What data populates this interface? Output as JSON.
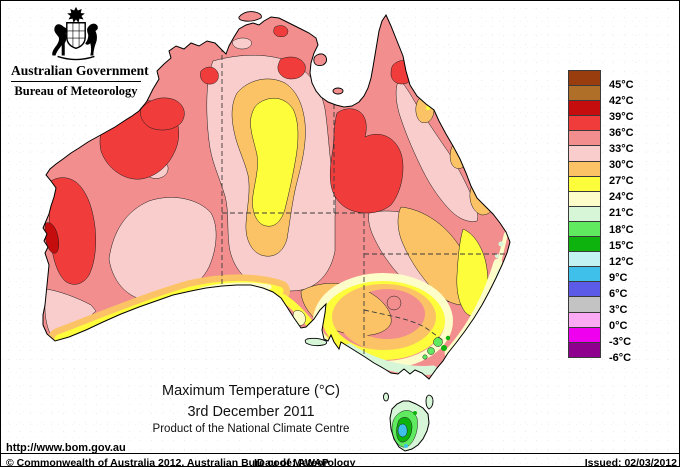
{
  "header": {
    "government": "Australian Government",
    "bureau": "Bureau of Meteorology"
  },
  "map": {
    "title": "Maximum Temperature (°C)",
    "date": "3rd December 2011",
    "product": "Product of the National Climate Centre",
    "url": "http://www.bom.gov.au",
    "region": "Australia"
  },
  "legend": {
    "unit": "°C",
    "labels": [
      "45°C",
      "42°C",
      "39°C",
      "36°C",
      "33°C",
      "30°C",
      "27°C",
      "24°C",
      "21°C",
      "18°C",
      "15°C",
      "12°C",
      "9°C",
      "6°C",
      "3°C",
      "0°C",
      "-3°C",
      "-6°C"
    ],
    "colors": [
      "#993D0E",
      "#B06F28",
      "#C50D0D",
      "#F13C3C",
      "#F28E8E",
      "#FACDCD",
      "#FBC366",
      "#FDFD3B",
      "#FDFDC9",
      "#D7F6D7",
      "#60EA60",
      "#0EB30E",
      "#C2F2F2",
      "#3FC0EA",
      "#5B5BE8",
      "#C3C3C3",
      "#FAA9F3",
      "#EF00EF",
      "#8F008F"
    ]
  },
  "footer": {
    "copyright": "© Commonwealth of Australia 2012, Australian Bureau of Meteorology",
    "id_code": "ID code: AWAP",
    "issued": "Issued: 02/03/2012"
  }
}
